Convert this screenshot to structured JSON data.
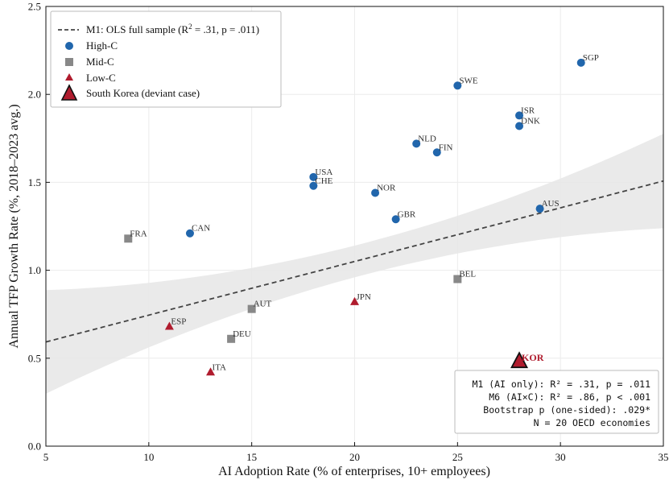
{
  "chart_data": {
    "type": "scatter",
    "title": "",
    "xlabel": "AI Adoption Rate (% of enterprises, 10+ employees)",
    "ylabel": "Annual TFP Growth Rate (%, 2018–2023 avg.)",
    "xlim": [
      5,
      35
    ],
    "ylim": [
      0,
      2.5
    ],
    "xticks": [
      "5",
      "10",
      "15",
      "20",
      "25",
      "30",
      "35"
    ],
    "yticks": [
      "0.0",
      "0.5",
      "1.0",
      "1.5",
      "2.0",
      "2.5"
    ],
    "grid": true,
    "legend_position": "top-left",
    "colors": {
      "high": "#2166ac",
      "mid": "#888888",
      "low": "#b01c2e",
      "line": "#444444",
      "band": "#e8e8e8"
    },
    "regression": {
      "name": "M1: OLS full sample (R",
      "name_sup": "2",
      "name_tail": " = .31, p = .011)",
      "intercept": 0.44,
      "slope": 0.0305
    },
    "legend": {
      "high": "High-C",
      "mid": "Mid-C",
      "low": "Low-C",
      "deviant": "South Korea (deviant case)"
    },
    "series": [
      {
        "name": "High-C",
        "marker": "circle",
        "points": [
          {
            "label": "SGP",
            "x": 31,
            "y": 2.18
          },
          {
            "label": "SWE",
            "x": 25,
            "y": 2.05
          },
          {
            "label": "ISR",
            "x": 28,
            "y": 1.88
          },
          {
            "label": "DNK",
            "x": 28,
            "y": 1.82
          },
          {
            "label": "NLD",
            "x": 23,
            "y": 1.72
          },
          {
            "label": "FIN",
            "x": 24,
            "y": 1.67
          },
          {
            "label": "USA",
            "x": 18,
            "y": 1.53
          },
          {
            "label": "CHE",
            "x": 18,
            "y": 1.48
          },
          {
            "label": "NOR",
            "x": 21,
            "y": 1.44
          },
          {
            "label": "AUS",
            "x": 29,
            "y": 1.35
          },
          {
            "label": "GBR",
            "x": 22,
            "y": 1.29
          },
          {
            "label": "CAN",
            "x": 12,
            "y": 1.21
          }
        ]
      },
      {
        "name": "Mid-C",
        "marker": "square",
        "points": [
          {
            "label": "FRA",
            "x": 9,
            "y": 1.18
          },
          {
            "label": "BEL",
            "x": 25,
            "y": 0.95
          },
          {
            "label": "AUT",
            "x": 15,
            "y": 0.78
          },
          {
            "label": "DEU",
            "x": 14,
            "y": 0.61
          }
        ]
      },
      {
        "name": "Low-C",
        "marker": "triangle",
        "points": [
          {
            "label": "JPN",
            "x": 20,
            "y": 0.82
          },
          {
            "label": "ESP",
            "x": 11,
            "y": 0.68
          },
          {
            "label": "ITA",
            "x": 13,
            "y": 0.42
          }
        ]
      },
      {
        "name": "South Korea (deviant case)",
        "marker": "big-triangle",
        "points": [
          {
            "label": "KOR",
            "x": 28,
            "y": 0.48
          }
        ]
      }
    ],
    "stats_box": [
      "M1 (AI only):  R² = .31, p = .011",
      "M6 (AI×C): R² = .86, p < .001",
      "Bootstrap p (one-sided): .029*",
      "N = 20 OECD economies"
    ]
  }
}
